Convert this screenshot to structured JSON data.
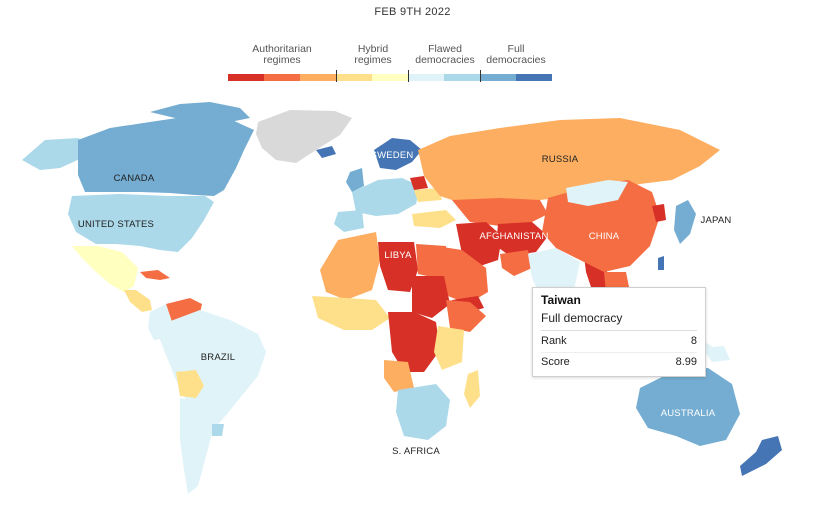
{
  "date": "FEB 9TH 2022",
  "legend": {
    "categories": [
      {
        "label": "Authoritarian\nregimes"
      },
      {
        "label": "Hybrid\nregimes"
      },
      {
        "label": "Flawed\ndemocracies"
      },
      {
        "label": "Full\ndemocracies"
      }
    ],
    "colors": [
      "#d73027",
      "#f46d43",
      "#fdae61",
      "#fee08b",
      "#ffffbf",
      "#e0f3f8",
      "#abd9e9",
      "#74add1",
      "#4575b4"
    ]
  },
  "colors": {
    "authoritarian_dark": "#d73027",
    "authoritarian": "#f46d43",
    "authoritarian_light": "#fdae61",
    "hybrid": "#fee08b",
    "hybrid_light": "#ffffbf",
    "flawed_light": "#e0f3f8",
    "flawed": "#abd9e9",
    "full": "#74add1",
    "full_dark": "#4575b4",
    "no_data": "#d9d9d9"
  },
  "labels": {
    "canada": "CANADA",
    "united_states": "UNITED STATES",
    "russia": "RUSSIA",
    "sweden": "SWEDEN",
    "china": "CHINA",
    "afghanistan": "AFGHANISTAN",
    "japan": "JAPAN",
    "libya": "LIBYA",
    "brazil": "BRAZIL",
    "south_africa": "S. AFRICA",
    "australia": "AUSTRALIA"
  },
  "tooltip": {
    "country": "Taiwan",
    "category": "Full democracy",
    "rank_label": "Rank",
    "rank_value": "8",
    "score_label": "Score",
    "score_value": "8.99"
  }
}
